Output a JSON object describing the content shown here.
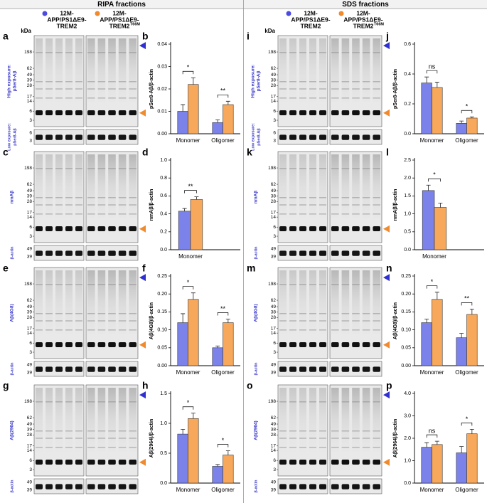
{
  "figure": {
    "kda": "kDa",
    "sections": [
      {
        "title": "RIPA fractions",
        "legend": [
          {
            "lines": [
              "12M-",
              "APP/PS1ΔE9-",
              "TREM2"
            ],
            "color": "#4b4be0"
          },
          {
            "lines": [
              "12M-",
              "APP/PS1ΔE9-",
              "TREM2"
            ],
            "sup": "T66M",
            "color": "#f08a2c"
          }
        ],
        "blots": [
          {
            "letter": "a",
            "label": [
              "High exposure:",
              "pSer8-Aβ"
            ],
            "markers": [
              "198",
              "62",
              "49",
              "39",
              "28",
              "17",
              "14",
              "6",
              "3"
            ],
            "top_arrow": true,
            "strip": {
              "label": [
                "Low exposure:",
                "pSer8-Aβ"
              ],
              "markers": [
                "6",
                "3"
              ]
            }
          },
          {
            "letter": "c",
            "label": [
              "nmAβ"
            ],
            "markers": [
              "198",
              "62",
              "49",
              "39",
              "28",
              "17",
              "14",
              "6",
              "3"
            ],
            "top_arrow": false,
            "strip": {
              "label": [
                "β-actin"
              ],
              "markers": [
                "49",
                "39"
              ]
            }
          },
          {
            "letter": "e",
            "label": [
              "Aβ(4G8)"
            ],
            "markers": [
              "198",
              "62",
              "49",
              "39",
              "28",
              "17",
              "14",
              "6",
              "3"
            ],
            "top_arrow": true,
            "strip": {
              "label": [
                "β-actin"
              ],
              "markers": [
                "49",
                "39"
              ]
            }
          },
          {
            "letter": "g",
            "label": [
              "Aβ(2964)"
            ],
            "markers": [
              "198",
              "62",
              "49",
              "39",
              "28",
              "17",
              "14",
              "6",
              "3"
            ],
            "top_arrow": true,
            "strip": {
              "label": [
                "β-actin"
              ],
              "markers": [
                "49",
                "39"
              ]
            }
          }
        ]
      },
      {
        "title": "SDS fractions",
        "legend": [
          {
            "lines": [
              "12M-",
              "APP/PS1ΔE9-",
              "TREM2"
            ],
            "color": "#4b4be0"
          },
          {
            "lines": [
              "12M-",
              "APP/PS1ΔE9-",
              "TREM2"
            ],
            "sup": "T66M",
            "color": "#f08a2c"
          }
        ],
        "blots": [
          {
            "letter": "i",
            "label": [
              "High exposure:",
              "pSer8-Aβ"
            ],
            "markers": [
              "198",
              "62",
              "49",
              "38",
              "28",
              "17",
              "14",
              "6",
              "3"
            ],
            "top_arrow": true,
            "strip": {
              "label": [
                "Low exposure:",
                "pSer8-Aβ"
              ],
              "markers": [
                "6",
                "3"
              ]
            }
          },
          {
            "letter": "k",
            "label": [
              "nmAβ"
            ],
            "markers": [
              "198",
              "62",
              "49",
              "38",
              "28",
              "17",
              "14",
              "6",
              "3"
            ],
            "top_arrow": false,
            "strip": {
              "label": [
                "β-actin"
              ],
              "markers": [
                "49",
                "39"
              ]
            }
          },
          {
            "letter": "m",
            "label": [
              "Aβ(4G8)"
            ],
            "markers": [
              "198",
              "62",
              "49",
              "38",
              "28",
              "17",
              "14",
              "6",
              "3"
            ],
            "top_arrow": true,
            "strip": {
              "label": [
                "β-actin"
              ],
              "markers": [
                "49",
                "39"
              ]
            }
          },
          {
            "letter": "o",
            "label": [
              "Aβ(2964)"
            ],
            "markers": [
              "198",
              "62",
              "49",
              "38",
              "28",
              "17",
              "14",
              "6",
              "3"
            ],
            "top_arrow": true,
            "strip": {
              "label": [
                "β-actin"
              ],
              "markers": [
                "49",
                "39"
              ]
            }
          }
        ]
      }
    ]
  },
  "chart_data": [
    {
      "type": "bar",
      "letter": "b",
      "ylabel": "pSer8-Aβ/β-actin",
      "categories": [
        "Monomer",
        "Oligomer"
      ],
      "series": [
        {
          "color": "#7b83eb",
          "values": [
            0.01,
            0.005
          ],
          "errors": [
            0.003,
            0.0012
          ]
        },
        {
          "color": "#f7a85a",
          "values": [
            0.022,
            0.013
          ],
          "errors": [
            0.003,
            0.0015
          ]
        }
      ],
      "ylim": [
        0,
        0.04
      ],
      "yticks": [
        {
          "value": 0,
          "label": "0.00"
        },
        0.01,
        0.02,
        0.03,
        0.04
      ],
      "annotations": [
        "*",
        "**"
      ]
    },
    {
      "type": "bar",
      "letter": "d",
      "ylabel": "nmAβ/β-actin",
      "categories": [
        "Monomer"
      ],
      "series": [
        {
          "color": "#7b83eb",
          "values": [
            0.43
          ],
          "errors": [
            0.03
          ]
        },
        {
          "color": "#f7a85a",
          "values": [
            0.56
          ],
          "errors": [
            0.03
          ]
        }
      ],
      "ylim": [
        0,
        1.0
      ],
      "yticks": [
        {
          "value": 0,
          "label": "0.0"
        },
        0.2,
        0.4,
        0.6,
        0.8,
        {
          "value": 1,
          "label": "1.0"
        }
      ],
      "annotations": [
        "**"
      ]
    },
    {
      "type": "bar",
      "letter": "f",
      "ylabel": "Aβ(4G8)/β-actin",
      "categories": [
        "Monomer",
        "Oligomer"
      ],
      "series": [
        {
          "color": "#7b83eb",
          "values": [
            0.12,
            0.05
          ],
          "errors": [
            0.025,
            0.005
          ]
        },
        {
          "color": "#f7a85a",
          "values": [
            0.185,
            0.12
          ],
          "errors": [
            0.018,
            0.01
          ]
        }
      ],
      "ylim": [
        0,
        0.25
      ],
      "yticks": [
        {
          "value": 0,
          "label": "0.00"
        },
        0.05,
        {
          "value": 0.1,
          "label": "0.10"
        },
        0.15,
        {
          "value": 0.2,
          "label": "0.20"
        },
        0.25
      ],
      "annotations": [
        "*",
        "**"
      ]
    },
    {
      "type": "bar",
      "letter": "h",
      "ylabel": "Aβ(2964)/β-actin",
      "categories": [
        "Monomer",
        "Oligomer"
      ],
      "series": [
        {
          "color": "#7b83eb",
          "values": [
            0.82,
            0.28
          ],
          "errors": [
            0.08,
            0.03
          ]
        },
        {
          "color": "#f7a85a",
          "values": [
            1.08,
            0.47
          ],
          "errors": [
            0.09,
            0.07
          ]
        }
      ],
      "ylim": [
        0,
        1.5
      ],
      "yticks": [
        {
          "value": 0,
          "label": "0.0"
        },
        0.5,
        {
          "value": 1,
          "label": "1.0"
        },
        1.5
      ],
      "annotations": [
        "*",
        "*"
      ]
    },
    {
      "type": "bar",
      "letter": "j",
      "ylabel": "pSer8-Aβ/β-actin",
      "categories": [
        "Monomer",
        "Oligomer"
      ],
      "series": [
        {
          "color": "#7b83eb",
          "values": [
            0.34,
            0.07
          ],
          "errors": [
            0.04,
            0.015
          ]
        },
        {
          "color": "#f7a85a",
          "values": [
            0.31,
            0.105
          ],
          "errors": [
            0.035,
            0.008
          ]
        }
      ],
      "ylim": [
        0,
        0.6
      ],
      "yticks": [
        {
          "value": 0,
          "label": "0.0"
        },
        0.2,
        0.4,
        0.6
      ],
      "annotations": [
        "ns",
        "*"
      ]
    },
    {
      "type": "bar",
      "letter": "l",
      "ylabel": "nmAβ/β-actin",
      "categories": [
        "Monomer"
      ],
      "series": [
        {
          "color": "#7b83eb",
          "values": [
            1.65
          ],
          "errors": [
            0.15
          ]
        },
        {
          "color": "#f7a85a",
          "values": [
            1.18
          ],
          "errors": [
            0.12
          ]
        }
      ],
      "ylim": [
        0,
        2.5
      ],
      "yticks": [
        {
          "value": 0,
          "label": "0.0"
        },
        0.5,
        {
          "value": 1,
          "label": "1.0"
        },
        1.5,
        {
          "value": 2,
          "label": "2.0"
        },
        2.5
      ],
      "annotations": [
        "*"
      ]
    },
    {
      "type": "bar",
      "letter": "n",
      "ylabel": "Aβ(4G8)/β-actin",
      "categories": [
        "Monomer",
        "Oligomer"
      ],
      "series": [
        {
          "color": "#7b83eb",
          "values": [
            0.12,
            0.078
          ],
          "errors": [
            0.01,
            0.012
          ]
        },
        {
          "color": "#f7a85a",
          "values": [
            0.185,
            0.143
          ],
          "errors": [
            0.02,
            0.015
          ]
        }
      ],
      "ylim": [
        0,
        0.25
      ],
      "yticks": [
        {
          "value": 0,
          "label": "0.00"
        },
        0.05,
        {
          "value": 0.1,
          "label": "0.10"
        },
        0.15,
        {
          "value": 0.2,
          "label": "0.20"
        },
        0.25
      ],
      "annotations": [
        "*",
        "**"
      ]
    },
    {
      "type": "bar",
      "letter": "p",
      "ylabel": "Aβ(2964)/β-actin",
      "categories": [
        "Monomer",
        "Oligomer"
      ],
      "series": [
        {
          "color": "#7b83eb",
          "values": [
            1.6,
            1.35
          ],
          "errors": [
            0.2,
            0.28
          ]
        },
        {
          "color": "#f7a85a",
          "values": [
            1.72,
            2.2
          ],
          "errors": [
            0.15,
            0.2
          ]
        }
      ],
      "ylim": [
        0,
        4.0
      ],
      "yticks": [
        {
          "value": 0,
          "label": "0.0"
        },
        {
          "value": 1,
          "label": "1.0"
        },
        {
          "value": 2,
          "label": "2.0"
        },
        {
          "value": 3,
          "label": "3.0"
        },
        {
          "value": 4,
          "label": "4.0"
        }
      ],
      "annotations": [
        "ns",
        "*"
      ]
    }
  ]
}
